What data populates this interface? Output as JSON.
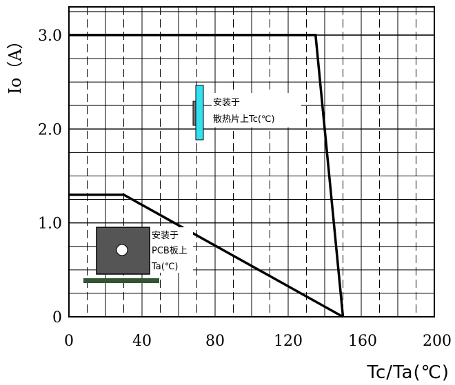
{
  "chart_data": {
    "type": "line",
    "ylabel": "Io（A）",
    "xlabel": "Tc/Ta(℃)",
    "xlim": [
      0,
      200
    ],
    "ylim": [
      0,
      3.3
    ],
    "x_ticks": [
      "0",
      "40",
      "80",
      "120",
      "160",
      "200"
    ],
    "y_ticks": [
      "0",
      "1.0",
      "2.0",
      "3.0"
    ],
    "grid": true,
    "series": [
      {
        "x": [
          0,
          135,
          150
        ],
        "y": [
          3.0,
          3.0,
          0
        ]
      },
      {
        "x": [
          0,
          30,
          150
        ],
        "y": [
          1.3,
          1.3,
          0
        ]
      }
    ],
    "annotations": [
      {
        "lines": [
          "安装于",
          "散热片上Tc(℃)"
        ]
      },
      {
        "lines": [
          "安装于",
          "PCB板上",
          "Ta(℃)"
        ]
      }
    ]
  },
  "colors": {
    "heatsink_fin": "#33e0ee",
    "pcb": "#335533",
    "device": "#555555"
  }
}
